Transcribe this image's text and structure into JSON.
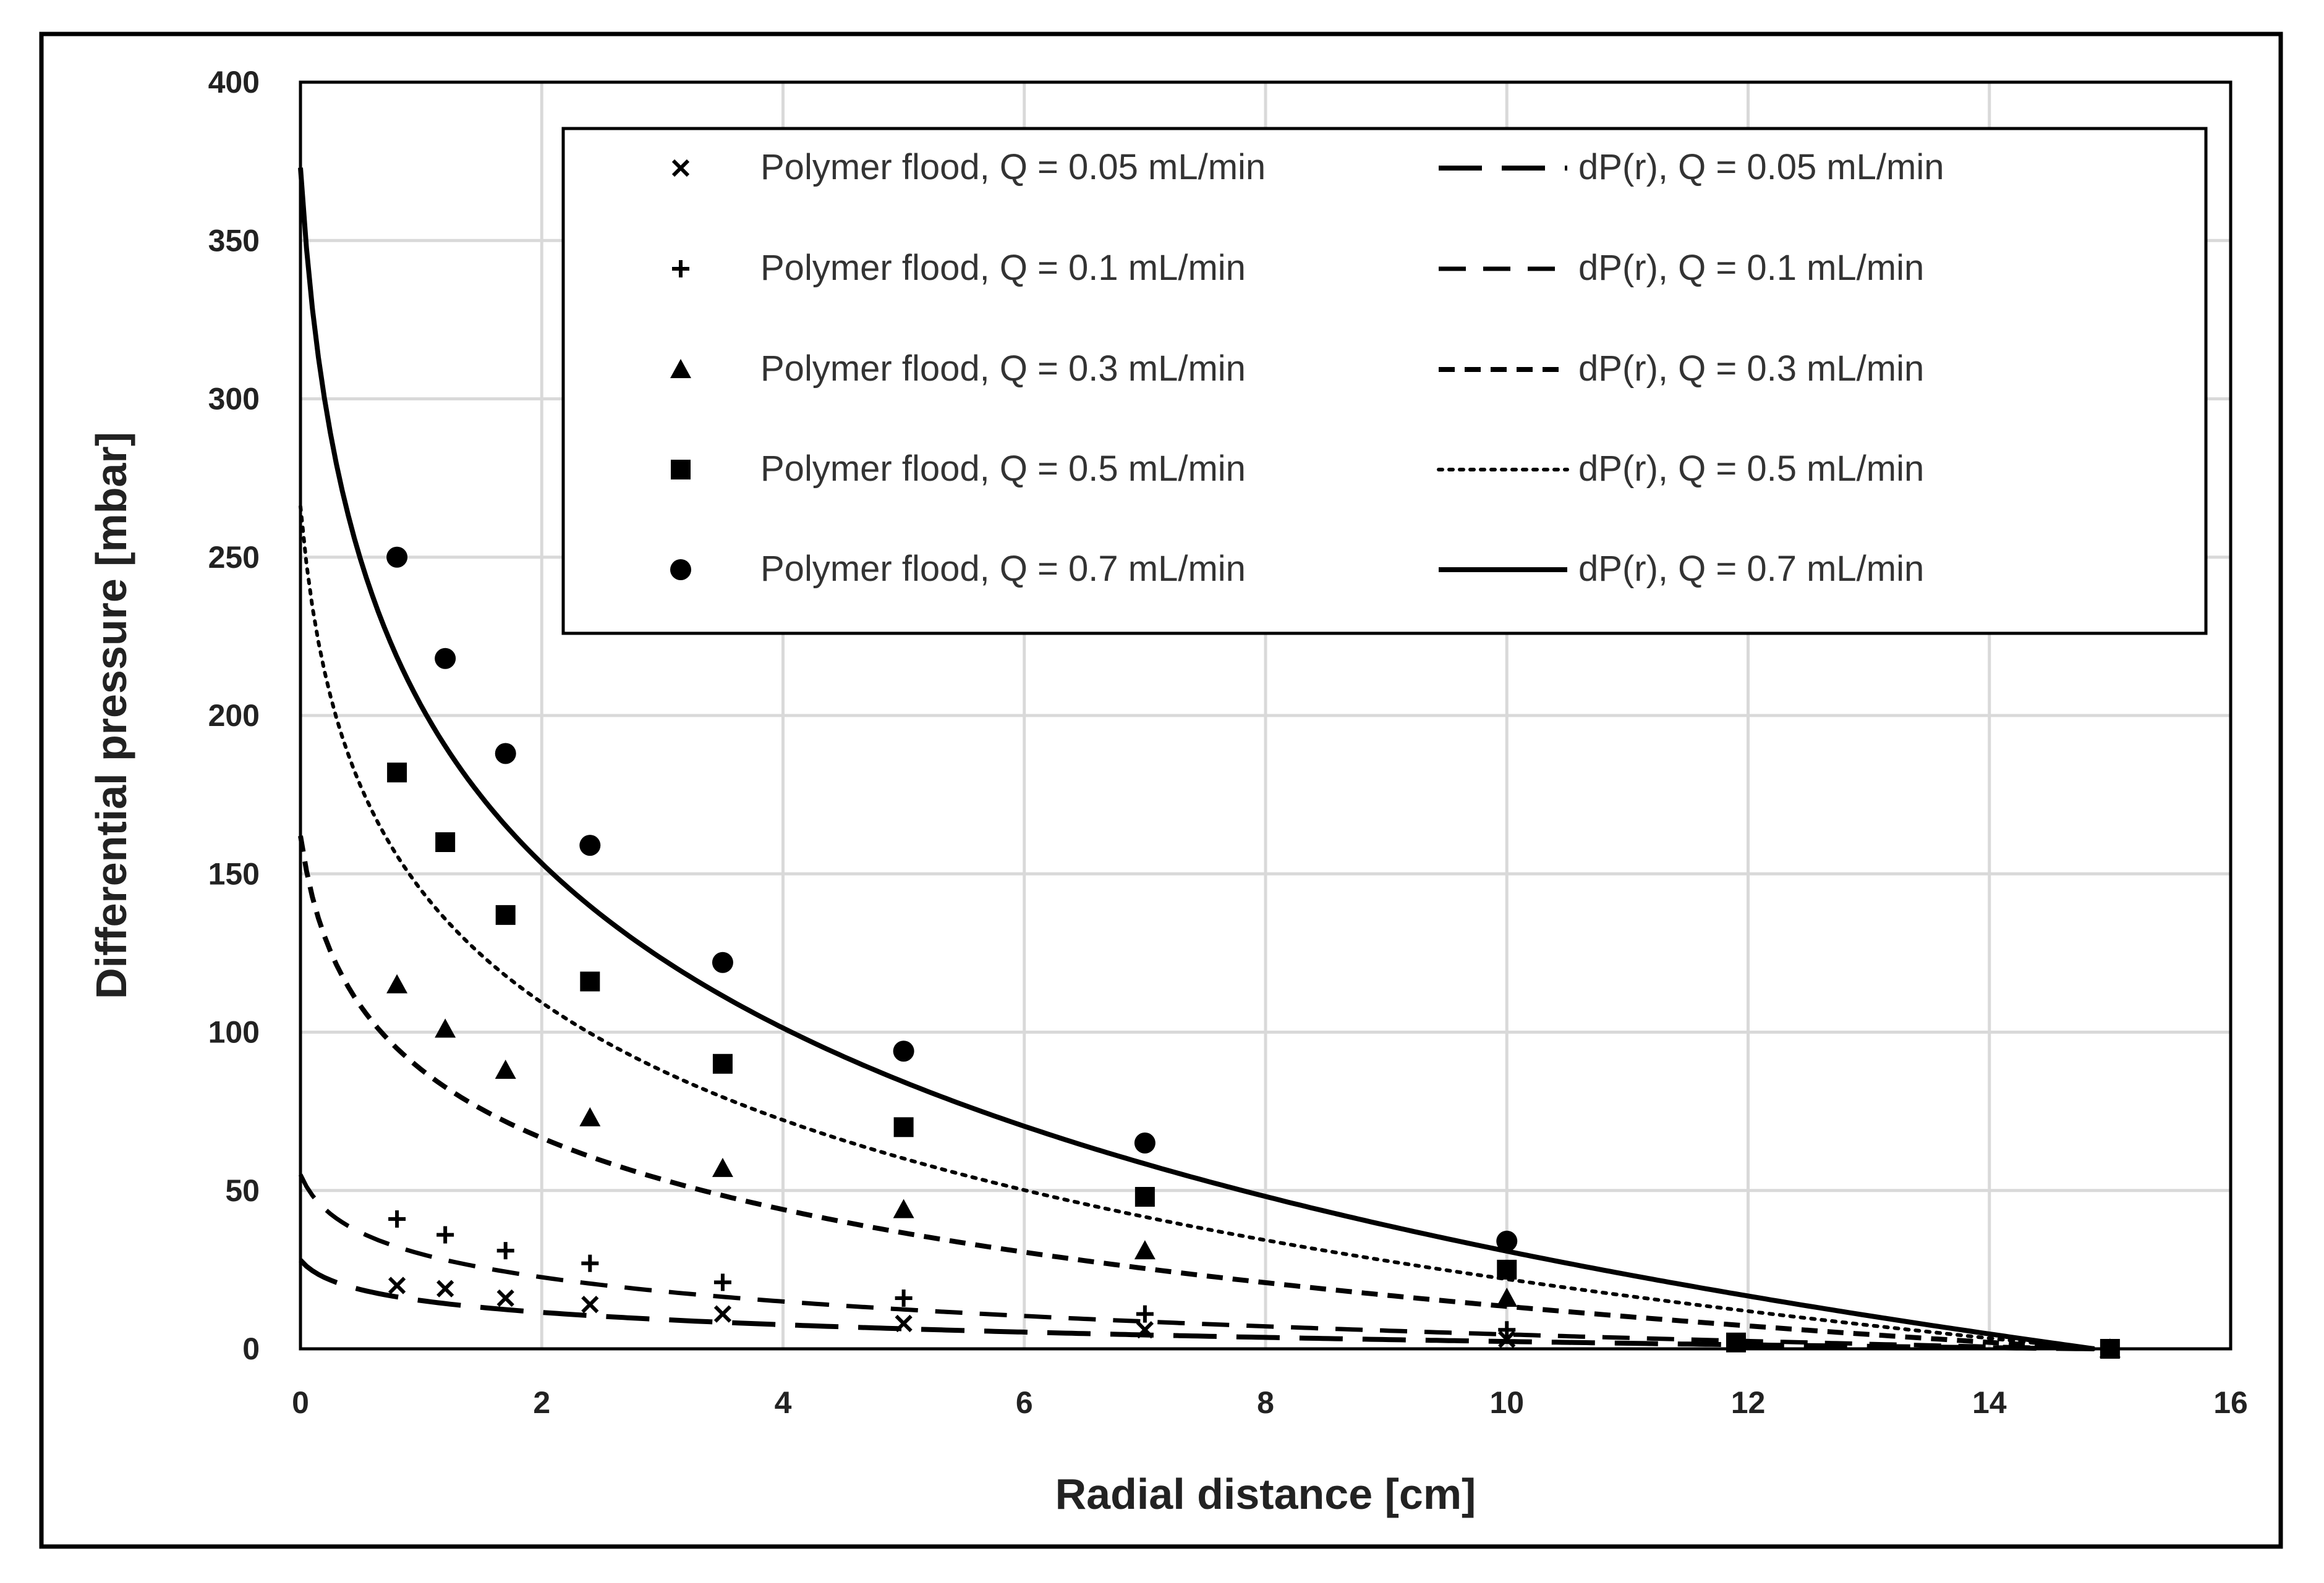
{
  "chart_data": {
    "type": "scatter",
    "title": "",
    "xlabel": "Radial distance [cm]",
    "ylabel": "Differential pressure [mbar]",
    "xlim": [
      0,
      16
    ],
    "ylim": [
      0,
      400
    ],
    "xticks": [
      0,
      2,
      4,
      6,
      8,
      10,
      12,
      14,
      16
    ],
    "yticks": [
      0,
      50,
      100,
      150,
      200,
      250,
      300,
      350,
      400
    ],
    "grid": true,
    "legend_position": "top-right",
    "marker_series": [
      {
        "name": "Polymer flood, Q = 0.05 mL/min",
        "marker": "x",
        "x": [
          0.8,
          1.2,
          1.7,
          2.4,
          3.5,
          5,
          7,
          10,
          15
        ],
        "y": [
          20,
          19,
          16,
          14,
          11,
          8,
          6,
          3,
          0
        ]
      },
      {
        "name": "Polymer flood, Q = 0.1 mL/min",
        "marker": "plus",
        "x": [
          0.8,
          1.2,
          1.7,
          2.4,
          3.5,
          5,
          7,
          10,
          15
        ],
        "y": [
          41,
          36,
          31,
          27,
          21,
          16,
          11,
          6,
          0
        ]
      },
      {
        "name": "Polymer flood, Q = 0.3 mL/min",
        "marker": "triangle",
        "x": [
          0.8,
          1.2,
          1.7,
          2.4,
          3.5,
          5,
          7,
          10,
          15
        ],
        "y": [
          115,
          101,
          88,
          73,
          57,
          44,
          31,
          16,
          0
        ]
      },
      {
        "name": "Polymer flood, Q = 0.5 mL/min",
        "marker": "square",
        "x": [
          0.8,
          1.2,
          1.7,
          2.4,
          3.5,
          5,
          7,
          10,
          11.9,
          15
        ],
        "y": [
          182,
          160,
          137,
          116,
          90,
          70,
          48,
          25,
          2,
          0
        ]
      },
      {
        "name": "Polymer flood, Q = 0.7 mL/min",
        "marker": "circle",
        "x": [
          0.8,
          1.2,
          1.7,
          2.4,
          3.5,
          5,
          7,
          10
        ],
        "y": [
          250,
          218,
          188,
          159,
          122,
          94,
          65,
          34
        ]
      }
    ],
    "line_series": [
      {
        "name": "dP(r), Q = 0.05 mL/min",
        "style": "long-dash",
        "r0": 28
      },
      {
        "name": "dP(r), Q = 0.1 mL/min",
        "style": "dash",
        "r0": 55
      },
      {
        "name": "dP(r), Q = 0.3 mL/min",
        "style": "short-dash",
        "r0": 162
      },
      {
        "name": "dP(r), Q = 0.5 mL/min",
        "style": "dotted",
        "r0": 266
      },
      {
        "name": "dP(r), Q = 0.7 mL/min",
        "style": "solid",
        "r0": 373
      }
    ],
    "line_shape": {
      "outer_radius": 15,
      "well_radius": 0.13
    }
  }
}
